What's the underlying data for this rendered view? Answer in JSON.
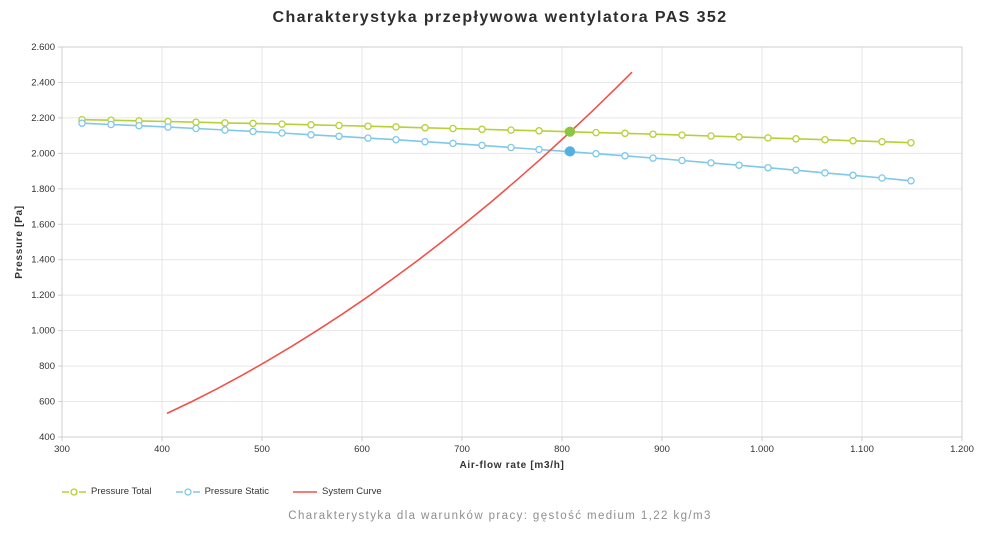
{
  "caption": "Charakterystyka dla warunków pracy: gęstość medium 1,22 kg/m3",
  "chart_data": {
    "type": "line",
    "title": "Charakterystyka przepływowa wentylatora PAS 352",
    "xlabel": "Air-flow rate [m3/h]",
    "ylabel": "Pressure [Pa]",
    "xlim": [
      300,
      1200
    ],
    "ylim": [
      400,
      2600
    ],
    "x_ticks": [
      300,
      400,
      500,
      600,
      700,
      800,
      900,
      1000,
      1100,
      1200
    ],
    "x_tick_labels": [
      "300",
      "400",
      "500",
      "600",
      "700",
      "800",
      "900",
      "1.000",
      "1.100",
      "1.200"
    ],
    "y_ticks": [
      400,
      600,
      800,
      1000,
      1200,
      1400,
      1600,
      1800,
      2000,
      2200,
      2400,
      2600
    ],
    "y_tick_labels": [
      "400",
      "600",
      "800",
      "1.000",
      "1.200",
      "1.400",
      "1.600",
      "1.800",
      "2.000",
      "2.200",
      "2.400",
      "2.600"
    ],
    "grid": true,
    "legend_position": "bottom-left",
    "colors": {
      "grid": "#e7e7e7",
      "plot_border": "#cfcfcf",
      "pressure_total": "#b5d136",
      "pressure_static": "#7fc8e8",
      "system_curve": "#f0524a",
      "operating_point_total": "#8cc63f",
      "operating_point_static": "#55b0e0"
    },
    "series": [
      {
        "name": "Pressure Total",
        "color": "#b5d136",
        "marker": "circle",
        "x": [
          320,
          349,
          377,
          406,
          434,
          463,
          491,
          520,
          549,
          577,
          606,
          634,
          663,
          691,
          720,
          749,
          777,
          806,
          834,
          863,
          891,
          920,
          949,
          977,
          1006,
          1034,
          1063,
          1091,
          1120,
          1149
        ],
        "y": [
          2190,
          2187,
          2183,
          2180,
          2176,
          2172,
          2169,
          2165,
          2161,
          2157,
          2153,
          2149,
          2144,
          2140,
          2136,
          2131,
          2127,
          2122,
          2117,
          2113,
          2108,
          2103,
          2098,
          2093,
          2087,
          2082,
          2077,
          2071,
          2066,
          2060
        ]
      },
      {
        "name": "Pressure Static",
        "color": "#7fc8e8",
        "marker": "circle",
        "x": [
          320,
          349,
          377,
          406,
          434,
          463,
          491,
          520,
          549,
          577,
          606,
          634,
          663,
          691,
          720,
          749,
          777,
          806,
          834,
          863,
          891,
          920,
          949,
          977,
          1006,
          1034,
          1063,
          1091,
          1120,
          1149
        ],
        "y": [
          2170,
          2163,
          2156,
          2148,
          2140,
          2132,
          2124,
          2115,
          2105,
          2096,
          2086,
          2077,
          2066,
          2056,
          2045,
          2033,
          2022,
          2010,
          1998,
          1986,
          1973,
          1960,
          1946,
          1933,
          1919,
          1905,
          1890,
          1876,
          1861,
          1845
        ]
      },
      {
        "name": "System Curve",
        "color": "#f0524a",
        "marker": "none",
        "x": [
          405,
          430,
          455,
          480,
          505,
          530,
          555,
          580,
          605,
          630,
          655,
          680,
          705,
          730,
          755,
          780,
          805,
          830,
          855,
          870
        ],
        "y": [
          533,
          600,
          672,
          748,
          828,
          912,
          1000,
          1092,
          1188,
          1289,
          1393,
          1501,
          1614,
          1730,
          1851,
          1975,
          2104,
          2237,
          2374,
          2458
        ]
      }
    ],
    "operating_points": [
      {
        "name": "operating-point-total",
        "x": 808,
        "y": 2122,
        "color": "#8cc63f"
      },
      {
        "name": "operating-point-static",
        "x": 808,
        "y": 2011,
        "color": "#55b0e0"
      }
    ]
  }
}
